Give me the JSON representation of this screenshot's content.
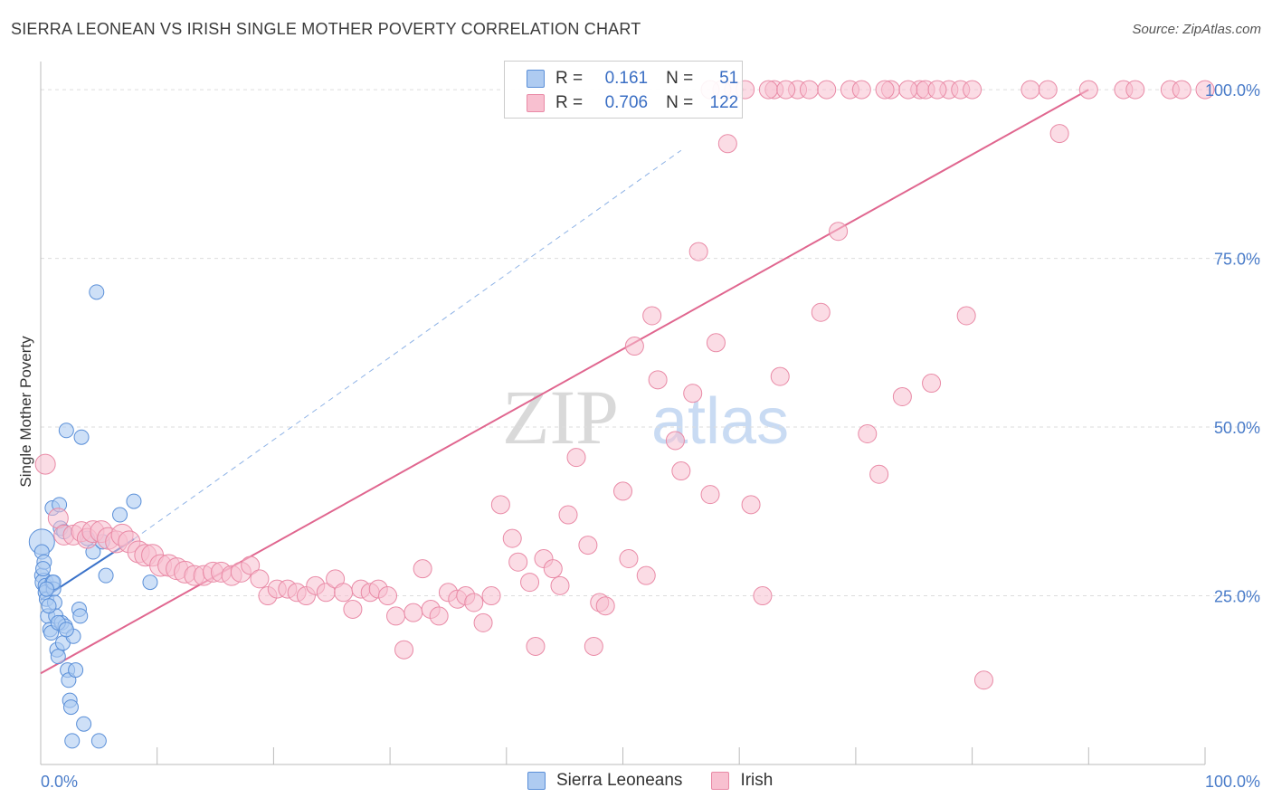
{
  "title": "SIERRA LEONEAN VS IRISH SINGLE MOTHER POVERTY CORRELATION CHART",
  "source": "Source: ZipAtlas.com",
  "watermark": {
    "zip": "ZIP",
    "atlas": "atlas"
  },
  "colors": {
    "blue_fill": "#aecbf1",
    "blue_stroke": "#5a8fd8",
    "blue_line": "#3a72c9",
    "pink_fill": "#f8c0d0",
    "pink_stroke": "#e98aa6",
    "pink_line": "#e0668f",
    "tick_label": "#4a7cc9",
    "grid": "#dddddd"
  },
  "legend_top": {
    "rows": [
      {
        "series": "Sierra Leoneans",
        "r_label": "R =",
        "r_value": "0.161",
        "n_label": "N =",
        "n_value": "51"
      },
      {
        "series": "Irish",
        "r_label": "R =",
        "r_value": "0.706",
        "n_label": "N =",
        "n_value": "122"
      }
    ]
  },
  "legend_bottom": [
    "Sierra Leoneans",
    "Irish"
  ],
  "chart_data": {
    "type": "scatter",
    "title": "SIERRA LEONEAN VS IRISH SINGLE MOTHER POVERTY CORRELATION CHART",
    "xlabel": "",
    "ylabel": "Single Mother Poverty",
    "xlim": [
      0,
      100
    ],
    "ylim": [
      0,
      100
    ],
    "x_tick_labels": [
      {
        "value": 0,
        "label": "0.0%"
      },
      {
        "value": 100,
        "label": "100.0%"
      }
    ],
    "y_tick_labels": [
      {
        "value": 25,
        "label": "25.0%"
      },
      {
        "value": 50,
        "label": "50.0%"
      },
      {
        "value": 75,
        "label": "75.0%"
      },
      {
        "value": 100,
        "label": "100.0%"
      }
    ],
    "x_minor_ticks": [
      0,
      10,
      20,
      30,
      40,
      50,
      60,
      70,
      80,
      90,
      100
    ],
    "grid": true,
    "series": [
      {
        "name": "Sierra Leoneans",
        "r": 0.161,
        "n": 51,
        "trend": {
          "x": [
            0,
            8
          ],
          "y": [
            24.4,
            33.4
          ]
        },
        "trend_extended": {
          "x": [
            8,
            55
          ],
          "y": [
            33.4,
            91
          ]
        },
        "points": [
          [
            0.1,
            33.0,
            14
          ],
          [
            0.1,
            31.5,
            8
          ],
          [
            0.1,
            28.0,
            8
          ],
          [
            0.3,
            30.0,
            8
          ],
          [
            0.3,
            27.0,
            10
          ],
          [
            0.4,
            26.5,
            8
          ],
          [
            0.4,
            25.5,
            8
          ],
          [
            0.5,
            24.5,
            8
          ],
          [
            0.6,
            22.0,
            8
          ],
          [
            0.8,
            20.0,
            8
          ],
          [
            0.9,
            19.5,
            8
          ],
          [
            1.0,
            38.0,
            8
          ],
          [
            1.0,
            27.0,
            8
          ],
          [
            1.1,
            26.0,
            8
          ],
          [
            1.2,
            24.0,
            8
          ],
          [
            1.3,
            22.0,
            8
          ],
          [
            1.4,
            17.0,
            8
          ],
          [
            1.5,
            16.0,
            8
          ],
          [
            1.6,
            38.5,
            8
          ],
          [
            1.7,
            35.0,
            8
          ],
          [
            1.8,
            21.0,
            8
          ],
          [
            1.9,
            18.0,
            8
          ],
          [
            2.0,
            34.5,
            8
          ],
          [
            2.1,
            20.5,
            8
          ],
          [
            2.2,
            49.5,
            8
          ],
          [
            2.3,
            14.0,
            8
          ],
          [
            2.4,
            12.5,
            8
          ],
          [
            2.5,
            9.5,
            8
          ],
          [
            2.6,
            8.5,
            8
          ],
          [
            2.7,
            3.5,
            8
          ],
          [
            2.8,
            19.0,
            8
          ],
          [
            3.0,
            14.0,
            8
          ],
          [
            3.3,
            23.0,
            8
          ],
          [
            3.4,
            22.0,
            8
          ],
          [
            3.5,
            48.5,
            8
          ],
          [
            3.7,
            6.0,
            8
          ],
          [
            4.0,
            33.5,
            8
          ],
          [
            4.5,
            31.5,
            8
          ],
          [
            4.8,
            70.0,
            8
          ],
          [
            5.0,
            3.5,
            8
          ],
          [
            5.3,
            33.0,
            8
          ],
          [
            5.6,
            28.0,
            8
          ],
          [
            6.8,
            37.0,
            8
          ],
          [
            8.0,
            39.0,
            8
          ],
          [
            9.4,
            27.0,
            8
          ],
          [
            0.2,
            29.0,
            8
          ],
          [
            0.7,
            23.5,
            8
          ],
          [
            1.5,
            21.0,
            8
          ],
          [
            2.2,
            20.0,
            8
          ],
          [
            1.1,
            27.0,
            8
          ],
          [
            0.5,
            26.0,
            8
          ]
        ]
      },
      {
        "name": "Irish",
        "r": 0.706,
        "n": 122,
        "trend": {
          "x": [
            0,
            90
          ],
          "y": [
            13.5,
            100
          ]
        },
        "points": [
          [
            0.4,
            44.5,
            11
          ],
          [
            1.5,
            36.5,
            11
          ],
          [
            2.0,
            34.0,
            11
          ],
          [
            2.8,
            34.0,
            11
          ],
          [
            3.5,
            34.5,
            11
          ],
          [
            4.0,
            33.5,
            11
          ],
          [
            4.5,
            34.5,
            12
          ],
          [
            5.2,
            34.5,
            12
          ],
          [
            5.8,
            33.5,
            12
          ],
          [
            6.5,
            33.0,
            12
          ],
          [
            7.0,
            34.0,
            12
          ],
          [
            7.6,
            33.0,
            12
          ],
          [
            8.4,
            31.5,
            12
          ],
          [
            9.0,
            31.0,
            12
          ],
          [
            9.6,
            31.0,
            12
          ],
          [
            10.3,
            29.5,
            12
          ],
          [
            11.0,
            29.5,
            12
          ],
          [
            11.7,
            29.0,
            12
          ],
          [
            12.4,
            28.5,
            12
          ],
          [
            13.2,
            28.0,
            11
          ],
          [
            14.0,
            28.0,
            11
          ],
          [
            14.8,
            28.5,
            11
          ],
          [
            15.5,
            28.5,
            11
          ],
          [
            16.4,
            28.0,
            11
          ],
          [
            17.2,
            28.5,
            11
          ],
          [
            18.0,
            29.5,
            10
          ],
          [
            18.8,
            27.5,
            10
          ],
          [
            19.5,
            25.0,
            10
          ],
          [
            20.3,
            26.0,
            10
          ],
          [
            21.2,
            26.0,
            10
          ],
          [
            22.0,
            25.5,
            10
          ],
          [
            22.8,
            25.0,
            10
          ],
          [
            23.6,
            26.5,
            10
          ],
          [
            24.5,
            25.5,
            10
          ],
          [
            25.3,
            27.5,
            10
          ],
          [
            26.0,
            25.5,
            10
          ],
          [
            26.8,
            23.0,
            10
          ],
          [
            27.5,
            26.0,
            10
          ],
          [
            28.3,
            25.5,
            10
          ],
          [
            29.0,
            26.0,
            10
          ],
          [
            29.8,
            25.0,
            10
          ],
          [
            30.5,
            22.0,
            10
          ],
          [
            31.2,
            17.0,
            10
          ],
          [
            32.0,
            22.5,
            10
          ],
          [
            32.8,
            29.0,
            10
          ],
          [
            33.5,
            23.0,
            10
          ],
          [
            34.2,
            22.0,
            10
          ],
          [
            35.0,
            25.5,
            10
          ],
          [
            35.8,
            24.5,
            10
          ],
          [
            36.5,
            25.0,
            10
          ],
          [
            37.2,
            24.0,
            10
          ],
          [
            38.0,
            21.0,
            10
          ],
          [
            38.7,
            25.0,
            10
          ],
          [
            39.5,
            38.5,
            10
          ],
          [
            40.5,
            33.5,
            10
          ],
          [
            41.0,
            30.0,
            10
          ],
          [
            42.0,
            27.0,
            10
          ],
          [
            42.5,
            17.5,
            10
          ],
          [
            43.2,
            30.5,
            10
          ],
          [
            44.0,
            29.0,
            10
          ],
          [
            44.6,
            26.5,
            10
          ],
          [
            45.3,
            37.0,
            10
          ],
          [
            46.0,
            45.5,
            10
          ],
          [
            47.0,
            32.5,
            10
          ],
          [
            47.5,
            17.5,
            10
          ],
          [
            48.0,
            24.0,
            10
          ],
          [
            48.5,
            23.5,
            10
          ],
          [
            50.0,
            40.5,
            10
          ],
          [
            50.5,
            30.5,
            10
          ],
          [
            51.0,
            62.0,
            10
          ],
          [
            52.0,
            28.0,
            10
          ],
          [
            52.5,
            66.5,
            10
          ],
          [
            53.0,
            57.0,
            10
          ],
          [
            54.5,
            48.0,
            10
          ],
          [
            55.0,
            43.5,
            10
          ],
          [
            56.0,
            55.0,
            10
          ],
          [
            56.5,
            76.0,
            10
          ],
          [
            57.5,
            40.0,
            10
          ],
          [
            58.0,
            62.5,
            10
          ],
          [
            59.0,
            92.0,
            10
          ],
          [
            59.5,
            100.0,
            10
          ],
          [
            61.0,
            38.5,
            10
          ],
          [
            62.0,
            25.0,
            10
          ],
          [
            63.0,
            100.0,
            10
          ],
          [
            63.5,
            57.5,
            10
          ],
          [
            65.0,
            100.0,
            10
          ],
          [
            67.0,
            67.0,
            10
          ],
          [
            68.5,
            79.0,
            10
          ],
          [
            69.5,
            100.0,
            10
          ],
          [
            71.0,
            49.0,
            10
          ],
          [
            72.0,
            43.0,
            10
          ],
          [
            73.0,
            100.0,
            10
          ],
          [
            74.0,
            54.5,
            10
          ],
          [
            75.5,
            100.0,
            10
          ],
          [
            76.5,
            56.5,
            10
          ],
          [
            78.0,
            100.0,
            10
          ],
          [
            79.5,
            66.5,
            10
          ],
          [
            81.0,
            12.5,
            10
          ],
          [
            85.0,
            100.0,
            10
          ],
          [
            86.5,
            100.0,
            10
          ],
          [
            87.5,
            93.5,
            10
          ],
          [
            90.0,
            100.0,
            10
          ],
          [
            93.0,
            100.0,
            10
          ],
          [
            94.0,
            100.0,
            10
          ],
          [
            97.0,
            100.0,
            10
          ],
          [
            98.0,
            100.0,
            10
          ],
          [
            101.0,
            100.0,
            10
          ],
          [
            59.5,
            100.0,
            10
          ],
          [
            60.5,
            100.0,
            10
          ],
          [
            58.5,
            100.0,
            10
          ],
          [
            57.5,
            100.0,
            10
          ],
          [
            62.5,
            100.0,
            10
          ],
          [
            64.0,
            100.0,
            10
          ],
          [
            66.0,
            100.0,
            10
          ],
          [
            67.5,
            100.0,
            10
          ],
          [
            70.5,
            100.0,
            10
          ],
          [
            72.5,
            100.0,
            10
          ],
          [
            74.5,
            100.0,
            10
          ],
          [
            76.0,
            100.0,
            10
          ],
          [
            77.0,
            100.0,
            10
          ],
          [
            79.0,
            100.0,
            10
          ],
          [
            80.0,
            100.0,
            10
          ]
        ]
      }
    ]
  }
}
